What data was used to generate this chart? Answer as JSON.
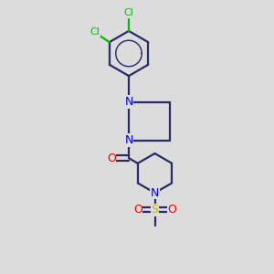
{
  "bg_color": "#dcdcdc",
  "bond_color": "#2a2a6a",
  "cl_color": "#00bb00",
  "n_color": "#0000ee",
  "o_color": "#ee0000",
  "s_color": "#bbbb00",
  "line_width": 1.6,
  "figsize": [
    3.0,
    3.0
  ],
  "dpi": 100,
  "xlim": [
    0,
    10
  ],
  "ylim": [
    0,
    10
  ]
}
